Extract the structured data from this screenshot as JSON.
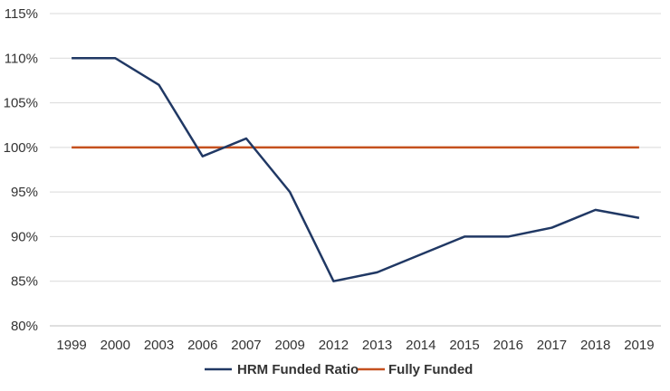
{
  "chart_data": {
    "type": "line",
    "title": "",
    "xlabel": "",
    "ylabel": "",
    "categories": [
      "1999",
      "2000",
      "2003",
      "2006",
      "2007",
      "2009",
      "2012",
      "2013",
      "2014",
      "2015",
      "2016",
      "2017",
      "2018",
      "2019"
    ],
    "y_ticks": [
      "80%",
      "85%",
      "90%",
      "95%",
      "100%",
      "105%",
      "110%",
      "115%"
    ],
    "ylim": [
      80,
      115
    ],
    "grid": "horizontal",
    "legend_position": "bottom",
    "series": [
      {
        "name": "HRM Funded Ratio",
        "color": "#203864",
        "values": [
          110,
          110,
          107,
          99,
          101,
          95,
          85,
          86,
          88,
          90,
          90,
          91,
          93,
          92.1
        ]
      },
      {
        "name": "Fully Funded",
        "color": "#c5501e",
        "values": [
          100,
          100,
          100,
          100,
          100,
          100,
          100,
          100,
          100,
          100,
          100,
          100,
          100,
          100
        ]
      }
    ]
  }
}
